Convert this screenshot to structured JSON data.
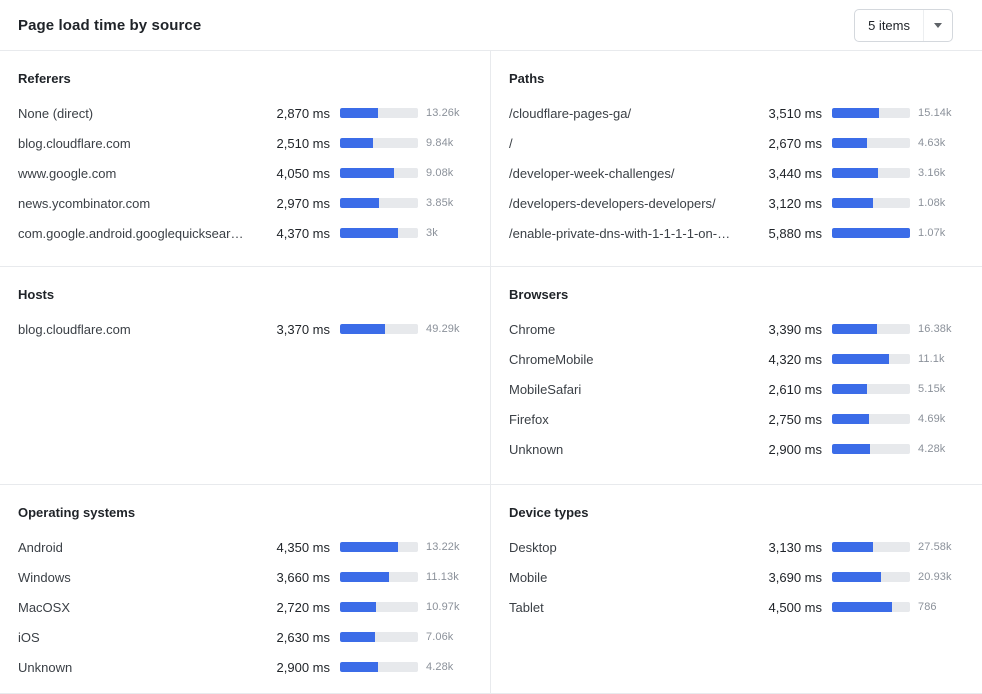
{
  "header": {
    "title": "Page load time by source",
    "items_selector": {
      "label": "5 items",
      "icon": "chevron-down-icon"
    }
  },
  "colors": {
    "bar_fill": "#3b6ce8",
    "bar_track": "#e7e9ec"
  },
  "chart_data": {
    "type": "bar",
    "orientation": "horizontal",
    "title": "Page load time by source",
    "unit": "ms",
    "axis_max_ms": 5880,
    "legend": "none",
    "sections": [
      {
        "title": "Referers",
        "rows": [
          {
            "label": "None (direct)",
            "value_ms": 2870,
            "value_label": "2,870 ms",
            "count": "13.26k"
          },
          {
            "label": "blog.cloudflare.com",
            "value_ms": 2510,
            "value_label": "2,510 ms",
            "count": "9.84k"
          },
          {
            "label": "www.google.com",
            "value_ms": 4050,
            "value_label": "4,050 ms",
            "count": "9.08k"
          },
          {
            "label": "news.ycombinator.com",
            "value_ms": 2970,
            "value_label": "2,970 ms",
            "count": "3.85k"
          },
          {
            "label": "com.google.android.googlequicksearc…",
            "value_ms": 4370,
            "value_label": "4,370 ms",
            "count": "3k"
          }
        ]
      },
      {
        "title": "Paths",
        "rows": [
          {
            "label": "/cloudflare-pages-ga/",
            "value_ms": 3510,
            "value_label": "3,510 ms",
            "count": "15.14k"
          },
          {
            "label": "/",
            "value_ms": 2670,
            "value_label": "2,670 ms",
            "count": "4.63k"
          },
          {
            "label": "/developer-week-challenges/",
            "value_ms": 3440,
            "value_label": "3,440 ms",
            "count": "3.16k"
          },
          {
            "label": "/developers-developers-developers/",
            "value_ms": 3120,
            "value_label": "3,120 ms",
            "count": "1.08k"
          },
          {
            "label": "/enable-private-dns-with-1-1-1-1-on-…",
            "value_ms": 5880,
            "value_label": "5,880 ms",
            "count": "1.07k"
          }
        ]
      },
      {
        "title": "Hosts",
        "rows": [
          {
            "label": "blog.cloudflare.com",
            "value_ms": 3370,
            "value_label": "3,370 ms",
            "count": "49.29k"
          }
        ]
      },
      {
        "title": "Browsers",
        "rows": [
          {
            "label": "Chrome",
            "value_ms": 3390,
            "value_label": "3,390 ms",
            "count": "16.38k"
          },
          {
            "label": "ChromeMobile",
            "value_ms": 4320,
            "value_label": "4,320 ms",
            "count": "11.1k"
          },
          {
            "label": "MobileSafari",
            "value_ms": 2610,
            "value_label": "2,610 ms",
            "count": "5.15k"
          },
          {
            "label": "Firefox",
            "value_ms": 2750,
            "value_label": "2,750 ms",
            "count": "4.69k"
          },
          {
            "label": "Unknown",
            "value_ms": 2900,
            "value_label": "2,900 ms",
            "count": "4.28k"
          }
        ]
      },
      {
        "title": "Operating systems",
        "rows": [
          {
            "label": "Android",
            "value_ms": 4350,
            "value_label": "4,350 ms",
            "count": "13.22k"
          },
          {
            "label": "Windows",
            "value_ms": 3660,
            "value_label": "3,660 ms",
            "count": "11.13k"
          },
          {
            "label": "MacOSX",
            "value_ms": 2720,
            "value_label": "2,720 ms",
            "count": "10.97k"
          },
          {
            "label": "iOS",
            "value_ms": 2630,
            "value_label": "2,630 ms",
            "count": "7.06k"
          },
          {
            "label": "Unknown",
            "value_ms": 2900,
            "value_label": "2,900 ms",
            "count": "4.28k"
          }
        ]
      },
      {
        "title": "Device types",
        "rows": [
          {
            "label": "Desktop",
            "value_ms": 3130,
            "value_label": "3,130 ms",
            "count": "27.58k"
          },
          {
            "label": "Mobile",
            "value_ms": 3690,
            "value_label": "3,690 ms",
            "count": "20.93k"
          },
          {
            "label": "Tablet",
            "value_ms": 4500,
            "value_label": "4,500 ms",
            "count": "786"
          }
        ]
      }
    ]
  }
}
